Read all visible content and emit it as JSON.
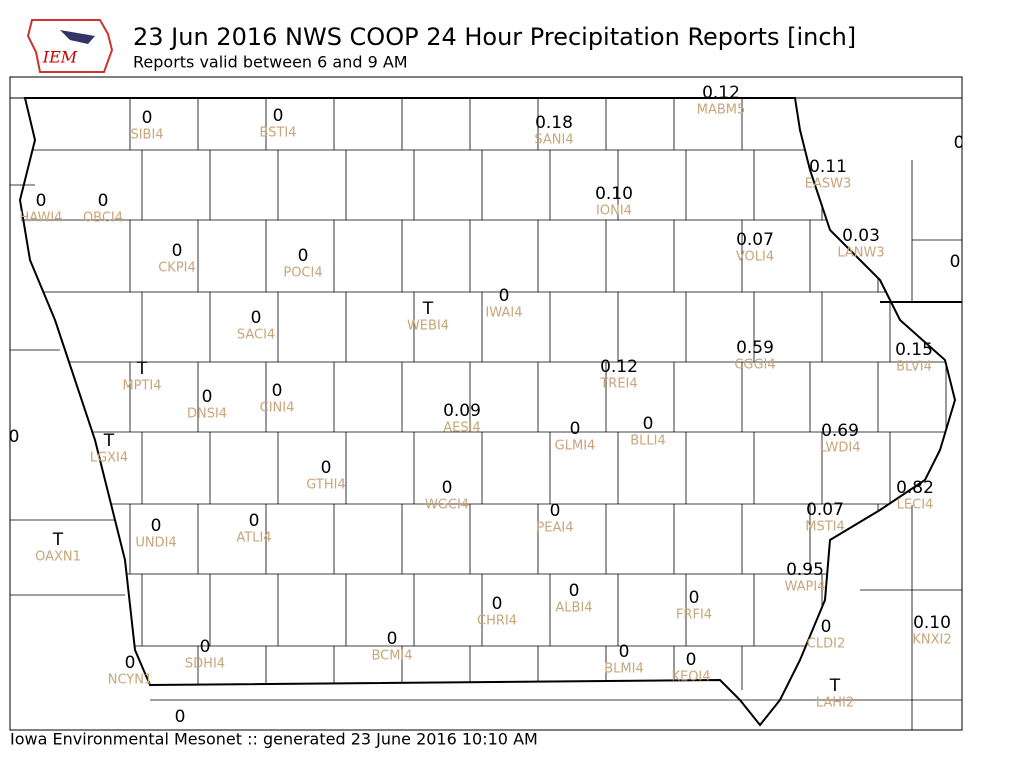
{
  "header": {
    "logo_text": "IEM",
    "title": "23 Jun 2016 NWS COOP 24 Hour Precipitation Reports [inch]",
    "subtitle": "Reports valid between 6 and 9 AM"
  },
  "stations": [
    {
      "id": "SIBI4",
      "value": "0"
    },
    {
      "id": "BSTI4",
      "value": "0"
    },
    {
      "id": "SANI4",
      "value": "0.18"
    },
    {
      "id": "MABM5",
      "value": "0.12"
    },
    {
      "id": "EASW3",
      "value": "0.11"
    },
    {
      "id": "HAWI4",
      "value": "0"
    },
    {
      "id": "OBCI4",
      "value": "0"
    },
    {
      "id": "IONI4",
      "value": "0.10"
    },
    {
      "id": "VOLI4",
      "value": "0.07"
    },
    {
      "id": "LANW3",
      "value": "0.03"
    },
    {
      "id": "CKPI4",
      "value": "0"
    },
    {
      "id": "POCI4",
      "value": "0"
    },
    {
      "id": "WEBI4",
      "value": "T"
    },
    {
      "id": "IWAI4",
      "value": "0"
    },
    {
      "id": "SACI4",
      "value": "0"
    },
    {
      "id": "TREI4",
      "value": "0.12"
    },
    {
      "id": "CGGI4",
      "value": "0.59"
    },
    {
      "id": "BLVI4",
      "value": "0.15"
    },
    {
      "id": "MPTI4",
      "value": "T"
    },
    {
      "id": "DNSI4",
      "value": "0"
    },
    {
      "id": "CINI4",
      "value": "0"
    },
    {
      "id": "AESI4",
      "value": "0.09"
    },
    {
      "id": "GLMI4",
      "value": "0"
    },
    {
      "id": "BLLI4",
      "value": "0"
    },
    {
      "id": "LWDI4",
      "value": "0.69"
    },
    {
      "id": "LGXI4",
      "value": "T"
    },
    {
      "id": "GTHI4",
      "value": "0"
    },
    {
      "id": "WGCI4",
      "value": "0"
    },
    {
      "id": "PEAI4",
      "value": "0"
    },
    {
      "id": "LECI4",
      "value": "0.82"
    },
    {
      "id": "MSTI4",
      "value": "0.07"
    },
    {
      "id": "OAXN1",
      "value": "T"
    },
    {
      "id": "UNDI4",
      "value": "0"
    },
    {
      "id": "ATLI4",
      "value": "0"
    },
    {
      "id": "WAPI4",
      "value": "0.95"
    },
    {
      "id": "ALBI4",
      "value": "0"
    },
    {
      "id": "FRFI4",
      "value": "0"
    },
    {
      "id": "CHRI4",
      "value": "0"
    },
    {
      "id": "CLDI2",
      "value": "0"
    },
    {
      "id": "KNXI2",
      "value": "0.10"
    },
    {
      "id": "SDHI4",
      "value": "0"
    },
    {
      "id": "BCMI4",
      "value": "0"
    },
    {
      "id": "BLMI4",
      "value": "0"
    },
    {
      "id": "KEOI4",
      "value": "0"
    },
    {
      "id": "NCYN1",
      "value": "0"
    },
    {
      "id": "LAHI2",
      "value": "T"
    },
    {
      "value": "0"
    },
    {
      "value": "0"
    },
    {
      "value": "0"
    },
    {
      "value": "0"
    }
  ],
  "footer": {
    "text": "Iowa Environmental Mesonet :: generated 23 June 2016 10:10 AM"
  }
}
